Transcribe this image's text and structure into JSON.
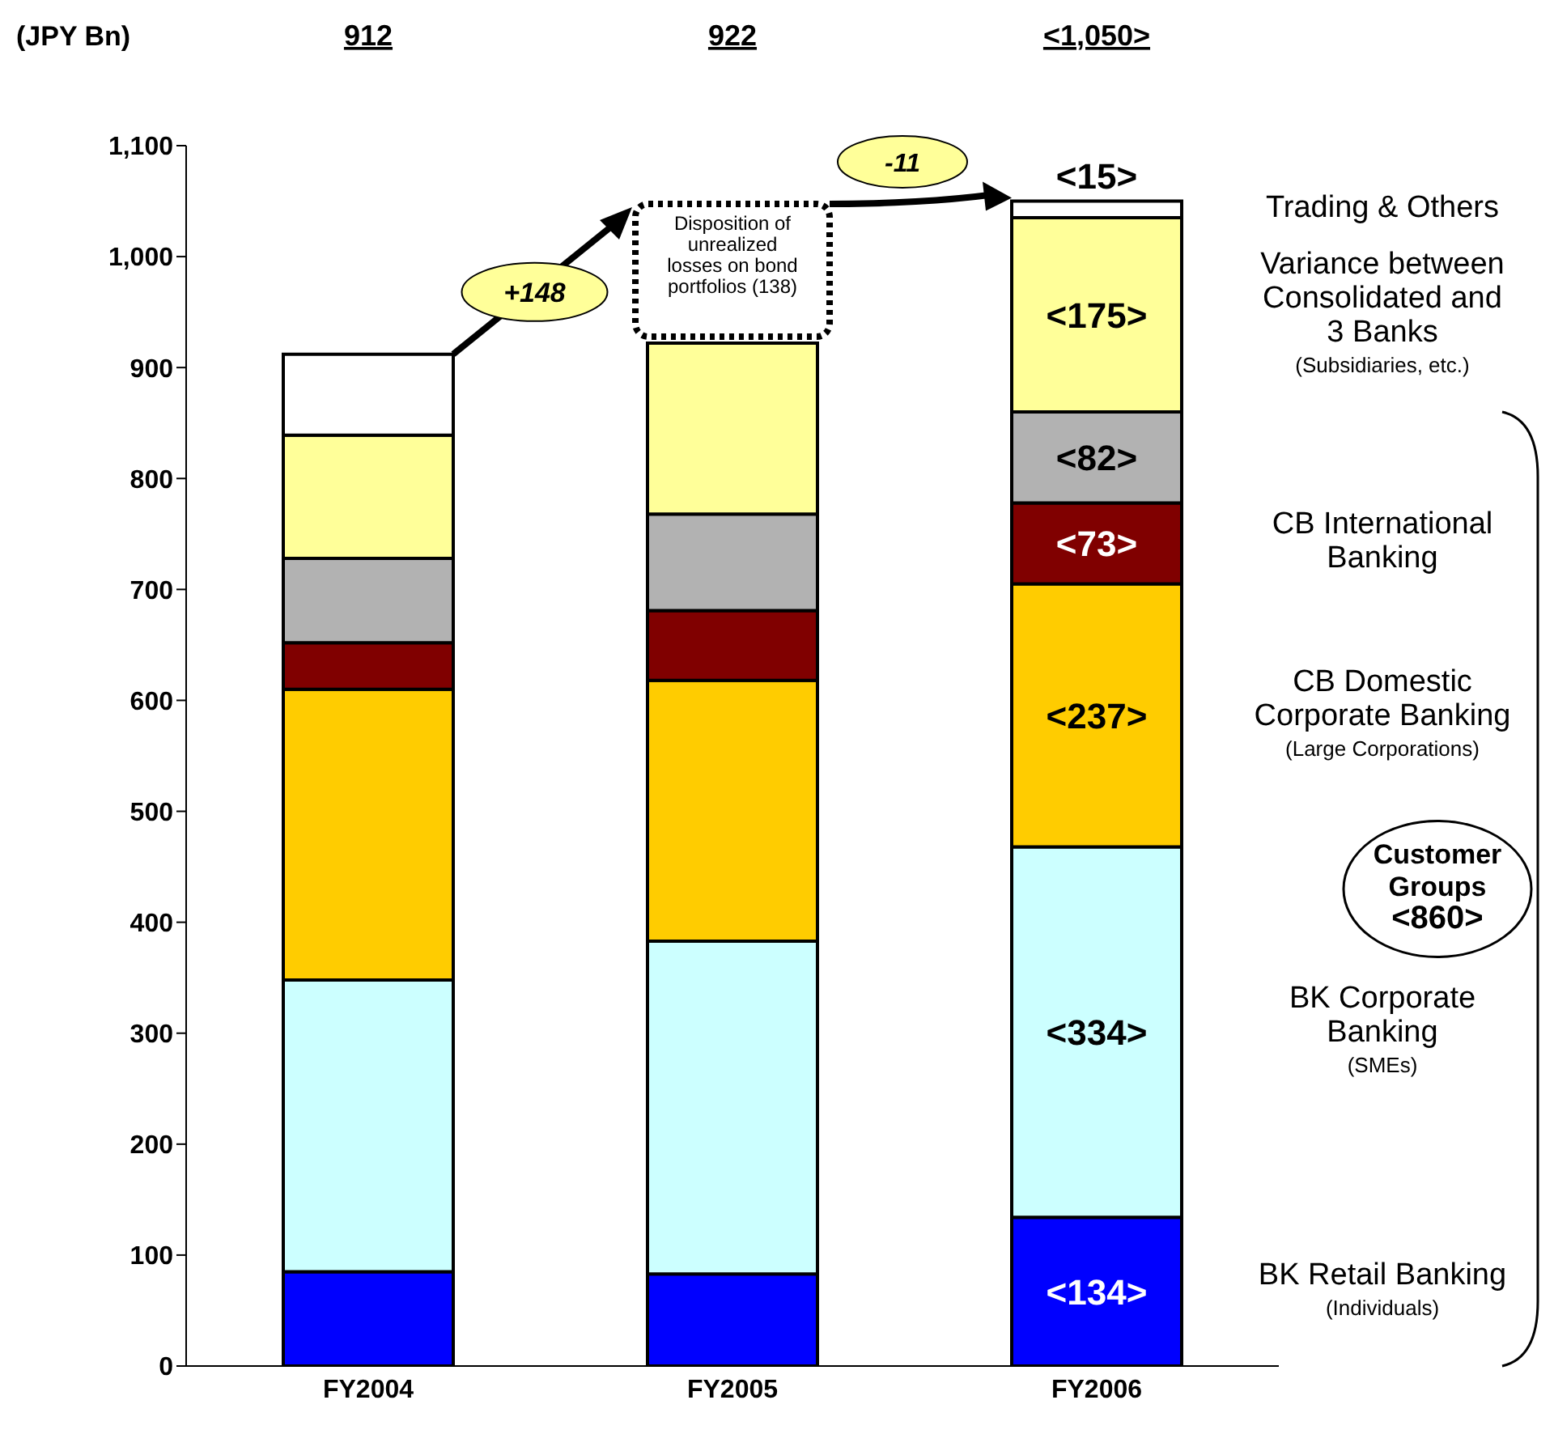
{
  "chart_data": {
    "type": "bar",
    "stacked": true,
    "ylabel": "(JPY Bn)",
    "categories": [
      "FY2004",
      "FY2005",
      "FY2006"
    ],
    "ylim": [
      0,
      1100
    ],
    "yticks": [
      0,
      100,
      200,
      300,
      400,
      500,
      600,
      700,
      800,
      900,
      {
        "value": 1000,
        "label": "1,000"
      },
      {
        "value": 1100,
        "label": "1,100"
      }
    ],
    "legend": false,
    "series": [
      {
        "name": "BK Retail Banking (Individuals)",
        "color": "#0000ff",
        "values": [
          85,
          83,
          134
        ],
        "value_labels": [
          null,
          null,
          "<134>"
        ]
      },
      {
        "name": "BK Corporate Banking (SMEs)",
        "color": "#ccffff",
        "values": [
          263,
          300,
          334
        ],
        "value_labels": [
          null,
          null,
          "<334>"
        ]
      },
      {
        "name": "CB Domestic Corporate Banking (Large Corporations)",
        "color": "#ffcc00",
        "values": [
          262,
          235,
          237
        ],
        "value_labels": [
          null,
          null,
          "<237>"
        ]
      },
      {
        "name": "CB International Banking",
        "color": "#800000",
        "values": [
          42,
          63,
          73
        ],
        "value_labels": [
          null,
          null,
          "<73>"
        ]
      },
      {
        "color": "#b2b2b2",
        "values": [
          76,
          87,
          82
        ],
        "value_labels": [
          null,
          null,
          "<82>"
        ]
      },
      {
        "name": "Variance between Consolidated and 3 Banks (Subsidiaries, etc.)",
        "color": "#ffff99",
        "values": [
          111,
          154,
          175
        ],
        "value_labels": [
          null,
          null,
          "<175>"
        ]
      },
      {
        "name": "Trading & Others",
        "color": "#ffffff",
        "values": [
          73,
          null,
          15
        ],
        "value_labels": [
          null,
          null,
          "<15>"
        ]
      }
    ],
    "annotations": [
      "912",
      "922",
      "<1,050>",
      "+148",
      "Disposition of unrealized losses on bond portfolios (138)",
      "-11",
      "Customer Groups <860>"
    ]
  }
}
